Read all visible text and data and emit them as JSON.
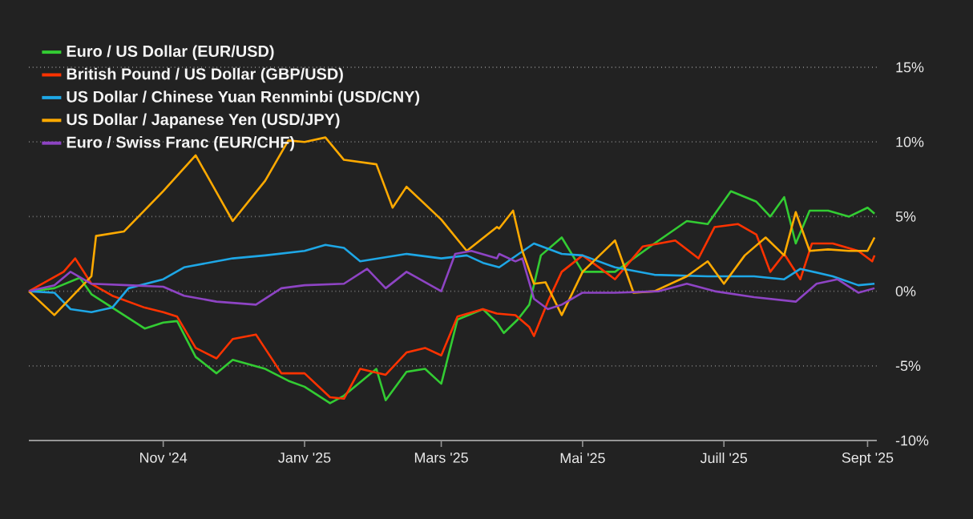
{
  "chart_data": {
    "type": "line",
    "xlim": [
      "2024-09-04",
      "2025-09-05"
    ],
    "xticks": [
      {
        "value": "2024-11-01",
        "label": "Nov '24"
      },
      {
        "value": "2025-01-01",
        "label": "Janv '25"
      },
      {
        "value": "2025-03-01",
        "label": "Mars '25"
      },
      {
        "value": "2025-05-01",
        "label": "Mai '25"
      },
      {
        "value": "2025-07-01",
        "label": "Juill '25"
      },
      {
        "value": "2025-09-01",
        "label": "Sept '25"
      }
    ],
    "ylim": [
      -10,
      15
    ],
    "yticks": [
      {
        "value": -10,
        "label": "-10%"
      },
      {
        "value": -5,
        "label": "-5%"
      },
      {
        "value": 0,
        "label": "0%"
      },
      {
        "value": 5,
        "label": "5%"
      },
      {
        "value": 10,
        "label": "10%"
      },
      {
        "value": 15,
        "label": "15%"
      }
    ],
    "grid": "y",
    "legend": "top left",
    "line_style": "solid",
    "series": [
      {
        "name": "Euro / US Dollar (EUR/USD)",
        "color": "#33cc33",
        "x": [
          "2024-09-04",
          "2024-09-15",
          "2024-09-26",
          "2024-10-01",
          "2024-10-15",
          "2024-10-24",
          "2024-11-01",
          "2024-11-07",
          "2024-11-15",
          "2024-11-24",
          "2024-12-01",
          "2024-12-15",
          "2024-12-25",
          "2025-01-01",
          "2025-01-12",
          "2025-01-18",
          "2025-02-01",
          "2025-02-05",
          "2025-02-14",
          "2025-02-22",
          "2025-03-01",
          "2025-03-08",
          "2025-03-19",
          "2025-03-25",
          "2025-03-28",
          "2025-04-03",
          "2025-04-08",
          "2025-04-13",
          "2025-04-22",
          "2025-05-01",
          "2025-05-15",
          "2025-06-01",
          "2025-06-15",
          "2025-06-24",
          "2025-07-04",
          "2025-07-15",
          "2025-07-21",
          "2025-07-27",
          "2025-08-01",
          "2025-08-07",
          "2025-08-15",
          "2025-08-24",
          "2025-09-01",
          "2025-09-04"
        ],
        "values": [
          0,
          0.2,
          0.9,
          -0.2,
          -1.6,
          -2.5,
          -2.1,
          -2.0,
          -4.4,
          -5.5,
          -4.6,
          -5.2,
          -6.0,
          -6.4,
          -7.5,
          -7.0,
          -5.2,
          -7.3,
          -5.4,
          -5.2,
          -6.2,
          -1.9,
          -1.2,
          -2.1,
          -2.8,
          -1.9,
          -0.9,
          2.4,
          3.6,
          1.3,
          1.3,
          3.2,
          4.7,
          4.5,
          6.7,
          6.0,
          5.0,
          6.3,
          3.2,
          5.4,
          5.4,
          5.0,
          5.6,
          5.2
        ]
      },
      {
        "name": "British Pound / US Dollar (GBP/USD)",
        "color": "#ff3300",
        "x": [
          "2024-09-04",
          "2024-09-19",
          "2024-09-24",
          "2024-10-01",
          "2024-10-10",
          "2024-10-24",
          "2024-11-01",
          "2024-11-07",
          "2024-11-15",
          "2024-11-24",
          "2024-12-01",
          "2024-12-11",
          "2024-12-22",
          "2025-01-01",
          "2025-01-12",
          "2025-01-18",
          "2025-01-25",
          "2025-02-05",
          "2025-02-14",
          "2025-02-22",
          "2025-03-01",
          "2025-03-08",
          "2025-03-19",
          "2025-03-25",
          "2025-04-02",
          "2025-04-08",
          "2025-04-10",
          "2025-04-16",
          "2025-04-22",
          "2025-05-01",
          "2025-05-15",
          "2025-05-27",
          "2025-06-10",
          "2025-06-20",
          "2025-06-27",
          "2025-07-07",
          "2025-07-15",
          "2025-07-21",
          "2025-07-27",
          "2025-08-03",
          "2025-08-08",
          "2025-08-17",
          "2025-08-28",
          "2025-09-03",
          "2025-09-04"
        ],
        "values": [
          0,
          1.3,
          2.2,
          0.5,
          -0.3,
          -1.1,
          -1.4,
          -1.7,
          -3.8,
          -4.5,
          -3.2,
          -2.9,
          -5.5,
          -5.5,
          -7.1,
          -7.2,
          -5.2,
          -5.6,
          -4.1,
          -3.8,
          -4.3,
          -1.7,
          -1.2,
          -1.5,
          -1.6,
          -2.4,
          -3.0,
          -0.7,
          1.3,
          2.4,
          0.8,
          3.0,
          3.4,
          2.2,
          4.3,
          4.5,
          3.8,
          1.3,
          2.5,
          0.8,
          3.2,
          3.2,
          2.7,
          2.0,
          2.4
        ]
      },
      {
        "name": "US Dollar / Chinese Yuan Renminbi (USD/CNY)",
        "color": "#1ea7e6",
        "x": [
          "2024-09-04",
          "2024-09-15",
          "2024-09-22",
          "2024-10-01",
          "2024-10-10",
          "2024-10-17",
          "2024-11-01",
          "2024-11-10",
          "2024-12-01",
          "2024-12-15",
          "2025-01-01",
          "2025-01-10",
          "2025-01-18",
          "2025-01-25",
          "2025-02-14",
          "2025-03-01",
          "2025-03-12",
          "2025-03-19",
          "2025-03-26",
          "2025-04-10",
          "2025-04-22",
          "2025-05-01",
          "2025-05-15",
          "2025-06-01",
          "2025-06-24",
          "2025-07-14",
          "2025-07-27",
          "2025-08-03",
          "2025-08-17",
          "2025-08-28",
          "2025-09-04"
        ],
        "values": [
          0,
          -0.1,
          -1.2,
          -1.4,
          -1.1,
          0.2,
          0.8,
          1.6,
          2.2,
          2.4,
          2.7,
          3.1,
          2.9,
          2.0,
          2.5,
          2.2,
          2.4,
          1.9,
          1.6,
          3.2,
          2.5,
          2.4,
          1.6,
          1.1,
          1.0,
          1.0,
          0.8,
          1.5,
          1.0,
          0.4,
          0.5
        ]
      },
      {
        "name": "US Dollar / Japanese Yen (USD/JPY)",
        "color": "#ffaa00",
        "x": [
          "2024-09-04",
          "2024-09-15",
          "2024-10-01",
          "2024-10-03",
          "2024-10-15",
          "2024-11-01",
          "2024-11-15",
          "2024-12-01",
          "2024-12-15",
          "2024-12-25",
          "2025-01-01",
          "2025-01-10",
          "2025-01-18",
          "2025-02-01",
          "2025-02-08",
          "2025-02-14",
          "2025-03-01",
          "2025-03-12",
          "2025-03-25",
          "2025-03-26",
          "2025-04-01",
          "2025-04-05",
          "2025-04-10",
          "2025-04-15",
          "2025-04-22",
          "2025-05-01",
          "2025-05-15",
          "2025-05-23",
          "2025-06-01",
          "2025-06-15",
          "2025-06-24",
          "2025-07-01",
          "2025-07-10",
          "2025-07-19",
          "2025-07-27",
          "2025-08-01",
          "2025-08-07",
          "2025-08-15",
          "2025-08-24",
          "2025-09-01",
          "2025-09-04"
        ],
        "values": [
          0,
          -1.6,
          1.0,
          3.7,
          4.0,
          6.7,
          9.1,
          4.7,
          7.4,
          10.1,
          10.0,
          10.3,
          8.8,
          8.5,
          5.6,
          7.0,
          4.8,
          2.7,
          4.3,
          4.2,
          5.4,
          2.7,
          0.5,
          0.6,
          -1.6,
          1.3,
          3.4,
          -0.1,
          0,
          1.0,
          2.0,
          0.5,
          2.4,
          3.6,
          2.4,
          5.3,
          2.7,
          2.8,
          2.7,
          2.7,
          3.6
        ]
      },
      {
        "name": "Euro / Swiss Franc (EUR/CHF)",
        "color": "#8e44c4",
        "x": [
          "2024-09-04",
          "2024-09-15",
          "2024-09-22",
          "2024-10-01",
          "2024-10-17",
          "2024-11-01",
          "2024-11-10",
          "2024-11-24",
          "2024-12-11",
          "2024-12-22",
          "2025-01-01",
          "2025-01-18",
          "2025-01-28",
          "2025-02-05",
          "2025-02-14",
          "2025-03-01",
          "2025-03-07",
          "2025-03-14",
          "2025-03-25",
          "2025-03-26",
          "2025-04-02",
          "2025-04-05",
          "2025-04-10",
          "2025-04-16",
          "2025-04-22",
          "2025-05-01",
          "2025-05-15",
          "2025-06-03",
          "2025-06-15",
          "2025-06-27",
          "2025-07-14",
          "2025-08-01",
          "2025-08-10",
          "2025-08-19",
          "2025-08-28",
          "2025-09-04"
        ],
        "values": [
          0,
          0.4,
          1.3,
          0.5,
          0.4,
          0.3,
          -0.3,
          -0.7,
          -0.9,
          0.2,
          0.4,
          0.5,
          1.5,
          0.2,
          1.3,
          0,
          2.5,
          2.7,
          2.2,
          2.5,
          2.0,
          2.2,
          -0.5,
          -1.2,
          -0.9,
          -0.1,
          -0.1,
          0,
          0.5,
          0,
          -0.4,
          -0.7,
          0.5,
          0.8,
          -0.1,
          0.2
        ]
      }
    ]
  }
}
